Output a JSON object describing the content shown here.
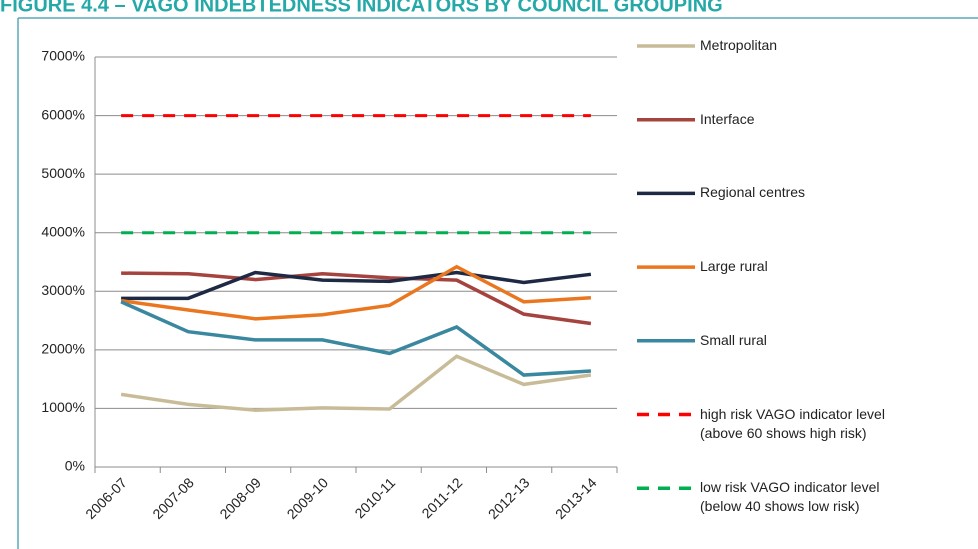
{
  "chart_data": {
    "type": "line",
    "title": "FIGURE 4.4 – VAGO INDEBTEDNESS INDICATORS BY COUNCIL GROUPING",
    "categories": [
      "2006-07",
      "2007-08",
      "2008-09",
      "2009-10",
      "2010-11",
      "2011-12",
      "2012-13",
      "2013-14"
    ],
    "series": [
      {
        "name": "Metropolitan",
        "color": "#c8bc98",
        "values": [
          1240,
          1070,
          970,
          1010,
          990,
          1890,
          1410,
          1570
        ]
      },
      {
        "name": "Interface",
        "color": "#a5433f",
        "values": [
          3310,
          3300,
          3200,
          3300,
          3230,
          3190,
          2610,
          2450
        ]
      },
      {
        "name": "Regional centres",
        "color": "#1e2a44",
        "values": [
          2880,
          2880,
          3320,
          3190,
          3170,
          3320,
          3150,
          3290
        ]
      },
      {
        "name": "Large rural",
        "color": "#ea7720",
        "values": [
          2840,
          2680,
          2530,
          2600,
          2760,
          3420,
          2820,
          2890
        ]
      },
      {
        "name": "Small rural",
        "color": "#3a87a0",
        "values": [
          2820,
          2310,
          2170,
          2170,
          1940,
          2390,
          1570,
          1640
        ]
      },
      {
        "name": "high risk VAGO indicator level\n(above 60 shows high risk)",
        "color": "#ff0000",
        "dashed": true,
        "values": [
          6000,
          6000,
          6000,
          6000,
          6000,
          6000,
          6000,
          6000
        ]
      },
      {
        "name": "low risk VAGO indicator level\n(below 40 shows low risk)",
        "color": "#00b050",
        "dashed": true,
        "values": [
          4000,
          4000,
          4000,
          4000,
          4000,
          4000,
          4000,
          4000
        ]
      }
    ],
    "ylim": [
      0,
      7000
    ],
    "yticks": [
      {
        "value": 0,
        "label": "0%"
      },
      {
        "value": 1000,
        "label": "1000%"
      },
      {
        "value": 2000,
        "label": "2000%"
      },
      {
        "value": 3000,
        "label": "3000%"
      },
      {
        "value": 4000,
        "label": "4000%"
      },
      {
        "value": 5000,
        "label": "5000%"
      },
      {
        "value": 6000,
        "label": "6000%"
      },
      {
        "value": 7000,
        "label": "7000%"
      }
    ],
    "grid": true,
    "legend": "right"
  }
}
